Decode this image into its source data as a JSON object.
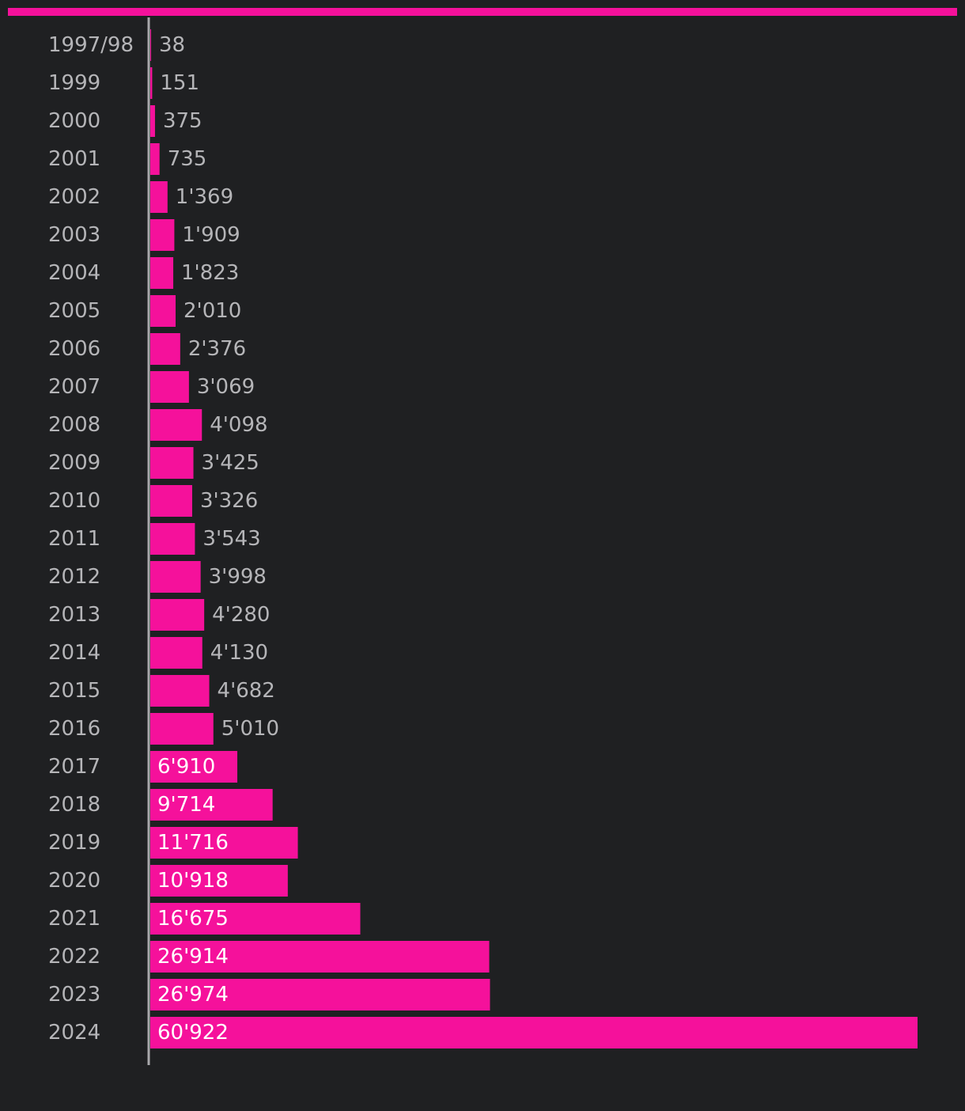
{
  "chart_data": {
    "type": "bar",
    "orientation": "horizontal",
    "categories": [
      "1997/98",
      "1999",
      "2000",
      "2001",
      "2002",
      "2003",
      "2004",
      "2005",
      "2006",
      "2007",
      "2008",
      "2009",
      "2010",
      "2011",
      "2012",
      "2013",
      "2014",
      "2015",
      "2016",
      "2017",
      "2018",
      "2019",
      "2020",
      "2021",
      "2022",
      "2023",
      "2024"
    ],
    "values": [
      38,
      151,
      375,
      735,
      1369,
      1909,
      1823,
      2010,
      2376,
      3069,
      4098,
      3425,
      3326,
      3543,
      3998,
      4280,
      4130,
      4682,
      5010,
      6910,
      9714,
      11716,
      10918,
      16675,
      26914,
      26974,
      60922
    ],
    "value_labels": [
      "38",
      "151",
      "375",
      "735",
      "1'369",
      "1'909",
      "1'823",
      "2'010",
      "2'376",
      "3'069",
      "4'098",
      "3'425",
      "3'326",
      "3'543",
      "3'998",
      "4'280",
      "4'130",
      "4'682",
      "5'010",
      "6'910",
      "9'714",
      "11'716",
      "10'918",
      "16'675",
      "26'914",
      "26'974",
      "60'922"
    ],
    "xlim": [
      0,
      60922
    ],
    "grid": false,
    "legend": "none",
    "colors": {
      "bar": "#f5119b",
      "accent_line": "#f5119b",
      "axis": "#a9a9ac",
      "background": "#1f2022",
      "category_text": "#b5b5b8",
      "value_text_outside": "#b5b5b8",
      "value_text_inside": "#ffffff"
    }
  }
}
